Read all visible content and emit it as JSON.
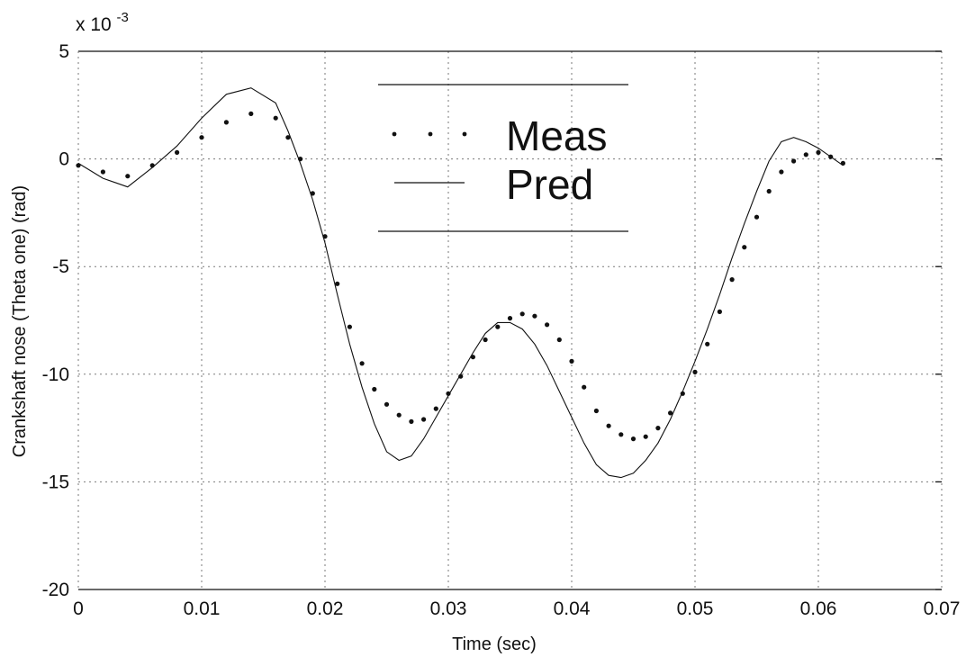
{
  "chart_data": {
    "type": "line",
    "xlabel": "Time (sec)",
    "ylabel": "Crankshaft nose (Theta one) (rad)",
    "y_exponent_label": "x 10",
    "y_exponent_power": "-3",
    "xlim": [
      0,
      0.07
    ],
    "ylim": [
      -20,
      5
    ],
    "x_ticks": [
      0,
      0.01,
      0.02,
      0.03,
      0.04,
      0.05,
      0.06,
      0.07
    ],
    "x_tick_labels": [
      "0",
      "0.01",
      "0.02",
      "0.03",
      "0.04",
      "0.05",
      "0.06",
      "0.07"
    ],
    "y_ticks": [
      5,
      0,
      -5,
      -10,
      -15,
      -20
    ],
    "y_tick_labels": [
      "5",
      "0",
      "-5",
      "-10",
      "-15",
      "-20"
    ],
    "grid": true,
    "legend_position": "top-center",
    "series": [
      {
        "name": "Meas",
        "style": "dotted",
        "color": "#111111",
        "x": [
          0,
          0.002,
          0.004,
          0.006,
          0.008,
          0.01,
          0.012,
          0.014,
          0.016,
          0.017,
          0.018,
          0.019,
          0.02,
          0.021,
          0.022,
          0.023,
          0.024,
          0.025,
          0.026,
          0.027,
          0.028,
          0.029,
          0.03,
          0.031,
          0.032,
          0.033,
          0.034,
          0.035,
          0.036,
          0.037,
          0.038,
          0.039,
          0.04,
          0.041,
          0.042,
          0.043,
          0.044,
          0.045,
          0.046,
          0.047,
          0.048,
          0.049,
          0.05,
          0.051,
          0.052,
          0.053,
          0.054,
          0.055,
          0.056,
          0.057,
          0.058,
          0.059,
          0.06,
          0.061,
          0.062
        ],
        "y": [
          -0.3,
          -0.6,
          -0.8,
          -0.3,
          0.3,
          1.0,
          1.7,
          2.1,
          1.9,
          1.0,
          0.0,
          -1.6,
          -3.6,
          -5.8,
          -7.8,
          -9.5,
          -10.7,
          -11.4,
          -11.9,
          -12.2,
          -12.1,
          -11.6,
          -10.9,
          -10.1,
          -9.2,
          -8.4,
          -7.8,
          -7.4,
          -7.2,
          -7.3,
          -7.7,
          -8.4,
          -9.4,
          -10.6,
          -11.7,
          -12.4,
          -12.8,
          -13.0,
          -12.9,
          -12.5,
          -11.8,
          -10.9,
          -9.9,
          -8.6,
          -7.1,
          -5.6,
          -4.1,
          -2.7,
          -1.5,
          -0.6,
          -0.1,
          0.2,
          0.3,
          0.1,
          -0.2
        ]
      },
      {
        "name": "Pred",
        "style": "solid",
        "color": "#111111",
        "x": [
          0,
          0.002,
          0.004,
          0.006,
          0.008,
          0.01,
          0.012,
          0.014,
          0.016,
          0.017,
          0.018,
          0.019,
          0.02,
          0.021,
          0.022,
          0.023,
          0.024,
          0.025,
          0.026,
          0.027,
          0.028,
          0.029,
          0.03,
          0.031,
          0.032,
          0.033,
          0.034,
          0.035,
          0.036,
          0.037,
          0.038,
          0.039,
          0.04,
          0.041,
          0.042,
          0.043,
          0.044,
          0.045,
          0.046,
          0.047,
          0.048,
          0.049,
          0.05,
          0.051,
          0.052,
          0.053,
          0.054,
          0.055,
          0.056,
          0.057,
          0.058,
          0.059,
          0.06,
          0.061,
          0.062
        ],
        "y": [
          -0.2,
          -0.9,
          -1.3,
          -0.4,
          0.6,
          1.9,
          3.0,
          3.3,
          2.6,
          1.3,
          -0.2,
          -1.9,
          -3.9,
          -6.3,
          -8.6,
          -10.6,
          -12.3,
          -13.6,
          -14.0,
          -13.8,
          -13.0,
          -12.0,
          -11.0,
          -10.0,
          -9.0,
          -8.1,
          -7.6,
          -7.6,
          -7.9,
          -8.6,
          -9.6,
          -10.8,
          -12.0,
          -13.2,
          -14.2,
          -14.7,
          -14.8,
          -14.6,
          -14.0,
          -13.2,
          -12.1,
          -10.8,
          -9.4,
          -7.9,
          -6.3,
          -4.6,
          -3.0,
          -1.5,
          -0.1,
          0.8,
          1.0,
          0.8,
          0.5,
          0.1,
          -0.3
        ]
      }
    ]
  }
}
